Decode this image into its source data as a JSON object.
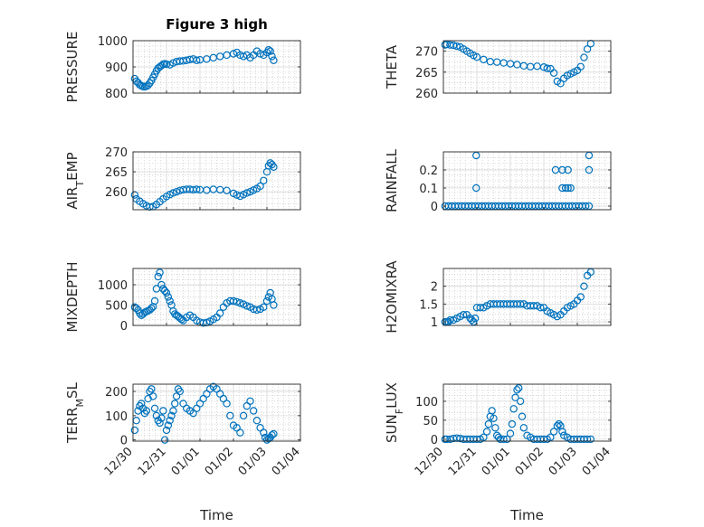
{
  "figure": {
    "title": "Figure 3 high",
    "xlabel": "Time",
    "marker_color": "#0072bd"
  },
  "chart_data": [
    {
      "type": "scatter",
      "title": "Figure 3 high",
      "ylabel": "PRESSURE",
      "ylabel_main": "PRESSURE",
      "ylabel_sub": "",
      "ylabel_tail": "",
      "xlim": [
        0,
        5
      ],
      "ylim": [
        800,
        1000
      ],
      "yticks": [
        800,
        900,
        1000
      ],
      "ytick_labels": [
        "800",
        "900",
        "1000"
      ],
      "xticks": [],
      "xtick_labels": [],
      "xlabel": "",
      "x": [
        0.05,
        0.1,
        0.15,
        0.2,
        0.25,
        0.3,
        0.35,
        0.4,
        0.45,
        0.5,
        0.55,
        0.6,
        0.65,
        0.7,
        0.75,
        0.8,
        0.85,
        0.9,
        0.95,
        1.0,
        1.1,
        1.2,
        1.3,
        1.4,
        1.5,
        1.6,
        1.7,
        1.8,
        1.9,
        2.0,
        2.2,
        2.4,
        2.6,
        2.8,
        3.0,
        3.1,
        3.2,
        3.3,
        3.4,
        3.5,
        3.6,
        3.7,
        3.8,
        3.9,
        4.0,
        4.05,
        4.1,
        4.15,
        4.2
      ],
      "y": [
        855,
        845,
        840,
        832,
        828,
        825,
        824,
        826,
        830,
        838,
        848,
        860,
        872,
        885,
        895,
        900,
        905,
        910,
        912,
        910,
        908,
        915,
        920,
        922,
        923,
        925,
        928,
        930,
        925,
        927,
        930,
        935,
        940,
        945,
        950,
        955,
        945,
        940,
        945,
        935,
        945,
        960,
        950,
        945,
        955,
        965,
        960,
        940,
        925
      ]
    },
    {
      "type": "scatter",
      "ylabel": "THETA",
      "ylabel_main": "THETA",
      "ylabel_sub": "",
      "ylabel_tail": "",
      "xlim": [
        0,
        5
      ],
      "ylim": [
        260,
        272.5
      ],
      "yticks": [
        260,
        265,
        270
      ],
      "ytick_labels": [
        "260",
        "265",
        "270"
      ],
      "xticks": [],
      "xtick_labels": [],
      "xlabel": "",
      "x": [
        0.05,
        0.1,
        0.2,
        0.3,
        0.4,
        0.5,
        0.6,
        0.7,
        0.8,
        0.9,
        1.0,
        1.2,
        1.4,
        1.6,
        1.8,
        2.0,
        2.2,
        2.4,
        2.6,
        2.8,
        3.0,
        3.1,
        3.2,
        3.3,
        3.4,
        3.5,
        3.6,
        3.7,
        3.8,
        3.9,
        4.0,
        4.1,
        4.2,
        4.3,
        4.4
      ],
      "y": [
        271.5,
        271.6,
        271.5,
        271.4,
        271.2,
        271.0,
        270.5,
        270.0,
        269.5,
        269.0,
        268.6,
        268.0,
        267.5,
        267.4,
        267.2,
        267.0,
        266.8,
        266.5,
        266.3,
        266.4,
        266.2,
        265.9,
        265.8,
        264.8,
        262.8,
        262.3,
        263.5,
        264.2,
        264.6,
        265.0,
        265.4,
        266.3,
        268.5,
        270.5,
        271.8
      ]
    },
    {
      "type": "scatter",
      "ylabel": "AIR_TEMP",
      "ylabel_main": "AIR",
      "ylabel_sub": "T",
      "ylabel_tail": "EMP",
      "xlim": [
        0,
        5
      ],
      "ylim": [
        255.5,
        270
      ],
      "yticks": [
        260,
        265,
        270
      ],
      "ytick_labels": [
        "260",
        "265",
        "270"
      ],
      "xticks": [],
      "xtick_labels": [],
      "xlabel": "",
      "x": [
        0.05,
        0.1,
        0.2,
        0.3,
        0.4,
        0.5,
        0.6,
        0.7,
        0.8,
        0.9,
        1.0,
        1.1,
        1.2,
        1.3,
        1.4,
        1.5,
        1.6,
        1.7,
        1.8,
        1.9,
        2.0,
        2.2,
        2.4,
        2.6,
        2.8,
        3.0,
        3.1,
        3.2,
        3.3,
        3.4,
        3.5,
        3.6,
        3.7,
        3.8,
        3.9,
        4.0,
        4.05,
        4.1,
        4.15,
        4.2
      ],
      "y": [
        259.2,
        258.2,
        257.6,
        257.0,
        256.5,
        256.2,
        256.3,
        256.8,
        257.5,
        258.2,
        258.8,
        259.3,
        259.7,
        260.0,
        260.3,
        260.5,
        260.6,
        260.6,
        260.5,
        260.6,
        260.5,
        260.4,
        260.6,
        260.5,
        260.3,
        259.6,
        259.2,
        258.9,
        259.3,
        259.7,
        260.0,
        260.4,
        260.8,
        261.4,
        262.8,
        265.0,
        266.5,
        267.2,
        266.8,
        266.2
      ]
    },
    {
      "type": "scatter",
      "ylabel": "RAINFALL",
      "ylabel_main": "RAINFALL",
      "ylabel_sub": "",
      "ylabel_tail": "",
      "xlim": [
        0,
        5
      ],
      "ylim": [
        -0.02,
        0.3
      ],
      "yticks": [
        0,
        0.1,
        0.2
      ],
      "ytick_labels": [
        "0",
        "0.1",
        "0.2"
      ],
      "xticks": [],
      "xtick_labels": [],
      "xlabel": "",
      "x": [
        0.05,
        0.15,
        0.25,
        0.35,
        0.45,
        0.55,
        0.65,
        0.75,
        0.85,
        0.95,
        1.05,
        1.15,
        1.25,
        1.35,
        1.45,
        1.55,
        1.65,
        1.75,
        1.85,
        1.95,
        2.05,
        2.15,
        2.25,
        2.35,
        2.45,
        2.55,
        2.65,
        2.75,
        2.85,
        2.95,
        3.05,
        3.15,
        3.25,
        3.35,
        3.45,
        3.55,
        3.65,
        3.75,
        3.85,
        3.95,
        4.05,
        4.15,
        4.25,
        4.35,
        0.98,
        0.98,
        3.35,
        3.55,
        3.55,
        3.65,
        3.72,
        3.72,
        3.8,
        4.35,
        4.35
      ],
      "y": [
        0,
        0,
        0,
        0,
        0,
        0,
        0,
        0,
        0,
        0,
        0,
        0,
        0,
        0,
        0,
        0,
        0,
        0,
        0,
        0,
        0,
        0,
        0,
        0,
        0,
        0,
        0,
        0,
        0,
        0,
        0,
        0,
        0,
        0,
        0,
        0,
        0,
        0,
        0,
        0,
        0,
        0,
        0,
        0,
        0.28,
        0.1,
        0.2,
        0.2,
        0.1,
        0.1,
        0.2,
        0.1,
        0.1,
        0.28,
        0.2
      ]
    },
    {
      "type": "scatter",
      "ylabel": "MIXDEPTH",
      "ylabel_main": "MIXDEPTH",
      "ylabel_sub": "",
      "ylabel_tail": "",
      "xlim": [
        0,
        5
      ],
      "ylim": [
        0,
        1400
      ],
      "yticks": [
        0,
        500,
        1000
      ],
      "ytick_labels": [
        "0",
        "500",
        "1000"
      ],
      "xticks": [],
      "xtick_labels": [],
      "xlabel": "",
      "x": [
        0.05,
        0.1,
        0.15,
        0.2,
        0.25,
        0.3,
        0.35,
        0.4,
        0.45,
        0.5,
        0.55,
        0.6,
        0.65,
        0.7,
        0.75,
        0.8,
        0.85,
        0.9,
        0.95,
        1.0,
        1.05,
        1.1,
        1.15,
        1.2,
        1.25,
        1.3,
        1.35,
        1.4,
        1.45,
        1.5,
        1.6,
        1.7,
        1.8,
        1.9,
        2.0,
        2.1,
        2.2,
        2.3,
        2.4,
        2.5,
        2.6,
        2.7,
        2.8,
        2.9,
        3.0,
        3.1,
        3.2,
        3.3,
        3.4,
        3.5,
        3.6,
        3.7,
        3.8,
        3.9,
        4.0,
        4.05,
        4.1,
        4.15,
        4.2
      ],
      "y": [
        450,
        420,
        380,
        300,
        250,
        280,
        320,
        340,
        360,
        380,
        420,
        460,
        600,
        900,
        1200,
        1300,
        1000,
        900,
        850,
        800,
        700,
        600,
        500,
        350,
        280,
        250,
        220,
        180,
        150,
        120,
        200,
        250,
        200,
        120,
        80,
        60,
        70,
        100,
        150,
        200,
        300,
        450,
        550,
        600,
        600,
        580,
        550,
        520,
        480,
        450,
        400,
        380,
        400,
        450,
        600,
        700,
        800,
        650,
        500
      ]
    },
    {
      "type": "scatter",
      "ylabel": "H2OMIXRA",
      "ylabel_main": "H2OMIXRA",
      "ylabel_sub": "",
      "ylabel_tail": "",
      "xlim": [
        0,
        5
      ],
      "ylim": [
        0.9,
        2.5
      ],
      "yticks": [
        1,
        1.5,
        2
      ],
      "ytick_labels": [
        "1",
        "1.5",
        "2"
      ],
      "xticks": [],
      "xtick_labels": [],
      "xlabel": "",
      "x": [
        0.05,
        0.1,
        0.15,
        0.2,
        0.3,
        0.4,
        0.5,
        0.6,
        0.7,
        0.8,
        0.85,
        0.9,
        0.95,
        1.0,
        1.1,
        1.2,
        1.3,
        1.4,
        1.5,
        1.6,
        1.7,
        1.8,
        1.9,
        2.0,
        2.1,
        2.2,
        2.3,
        2.4,
        2.5,
        2.6,
        2.7,
        2.8,
        2.9,
        3.0,
        3.1,
        3.2,
        3.3,
        3.4,
        3.5,
        3.6,
        3.7,
        3.8,
        3.9,
        4.0,
        4.1,
        4.2,
        4.3,
        4.4
      ],
      "y": [
        1.0,
        1.0,
        1.0,
        1.05,
        1.05,
        1.1,
        1.15,
        1.2,
        1.2,
        1.1,
        1.05,
        1.0,
        1.1,
        1.4,
        1.4,
        1.4,
        1.45,
        1.5,
        1.5,
        1.5,
        1.5,
        1.5,
        1.5,
        1.5,
        1.5,
        1.5,
        1.5,
        1.5,
        1.45,
        1.45,
        1.45,
        1.45,
        1.4,
        1.4,
        1.3,
        1.25,
        1.2,
        1.15,
        1.2,
        1.3,
        1.4,
        1.45,
        1.5,
        1.6,
        1.7,
        2.0,
        2.3,
        2.4
      ]
    },
    {
      "type": "scatter",
      "ylabel": "TERR_MSL",
      "ylabel_main": "TERR",
      "ylabel_sub": "M",
      "ylabel_tail": "SL",
      "xlim": [
        0,
        5
      ],
      "ylim": [
        -5,
        230
      ],
      "yticks": [
        0,
        100,
        200
      ],
      "ytick_labels": [
        "0",
        "100",
        "200"
      ],
      "xticks": [
        0,
        1,
        2,
        3,
        4,
        5
      ],
      "xtick_labels": [
        "12/30",
        "12/31",
        "01/01",
        "01/02",
        "01/03",
        "01/04"
      ],
      "xlabel": "Time",
      "x": [
        0.05,
        0.1,
        0.15,
        0.2,
        0.25,
        0.3,
        0.35,
        0.4,
        0.45,
        0.5,
        0.55,
        0.6,
        0.65,
        0.7,
        0.75,
        0.8,
        0.85,
        0.9,
        0.95,
        1.0,
        1.05,
        1.1,
        1.15,
        1.2,
        1.25,
        1.3,
        1.35,
        1.4,
        1.5,
        1.6,
        1.7,
        1.8,
        1.9,
        2.0,
        2.1,
        2.2,
        2.3,
        2.4,
        2.5,
        2.6,
        2.7,
        2.8,
        2.9,
        3.0,
        3.1,
        3.2,
        3.3,
        3.4,
        3.5,
        3.6,
        3.7,
        3.8,
        3.9,
        3.95,
        4.0,
        4.05,
        4.1,
        4.15,
        4.2
      ],
      "y": [
        40,
        80,
        120,
        140,
        150,
        130,
        110,
        120,
        170,
        200,
        210,
        180,
        130,
        100,
        80,
        70,
        90,
        120,
        0,
        40,
        60,
        80,
        100,
        120,
        150,
        180,
        210,
        200,
        150,
        130,
        120,
        110,
        130,
        150,
        170,
        190,
        210,
        220,
        210,
        190,
        170,
        150,
        100,
        60,
        50,
        30,
        100,
        140,
        160,
        120,
        80,
        50,
        30,
        10,
        0,
        5,
        10,
        20,
        25
      ]
    },
    {
      "type": "scatter",
      "ylabel": "SUN_FLUX",
      "ylabel_main": "SUN",
      "ylabel_sub": "F",
      "ylabel_tail": "LUX",
      "xlim": [
        0,
        5
      ],
      "ylim": [
        -5,
        145
      ],
      "yticks": [
        0,
        50,
        100
      ],
      "ytick_labels": [
        "0",
        "50",
        "100"
      ],
      "xticks": [
        0,
        1,
        2,
        3,
        4,
        5
      ],
      "xtick_labels": [
        "12/30",
        "12/31",
        "01/01",
        "01/02",
        "01/03",
        "01/04"
      ],
      "xlabel": "Time",
      "x": [
        0.05,
        0.1,
        0.2,
        0.3,
        0.4,
        0.5,
        0.6,
        0.7,
        0.8,
        0.9,
        1.0,
        1.1,
        1.2,
        1.3,
        1.35,
        1.4,
        1.45,
        1.5,
        1.55,
        1.6,
        1.65,
        1.7,
        1.8,
        1.9,
        2.0,
        2.05,
        2.1,
        2.15,
        2.2,
        2.25,
        2.3,
        2.35,
        2.4,
        2.5,
        2.6,
        2.7,
        2.8,
        2.9,
        3.0,
        3.1,
        3.2,
        3.3,
        3.4,
        3.45,
        3.5,
        3.55,
        3.6,
        3.7,
        3.8,
        3.9,
        4.0,
        4.1,
        4.2,
        4.3,
        4.4
      ],
      "y": [
        0,
        0,
        0,
        2,
        3,
        2,
        0,
        0,
        0,
        0,
        0,
        0,
        5,
        20,
        40,
        60,
        75,
        55,
        30,
        10,
        5,
        0,
        0,
        0,
        15,
        40,
        80,
        110,
        130,
        135,
        100,
        60,
        30,
        10,
        5,
        0,
        0,
        0,
        0,
        0,
        5,
        20,
        35,
        40,
        35,
        20,
        10,
        5,
        0,
        0,
        0,
        0,
        0,
        0,
        0
      ]
    }
  ]
}
